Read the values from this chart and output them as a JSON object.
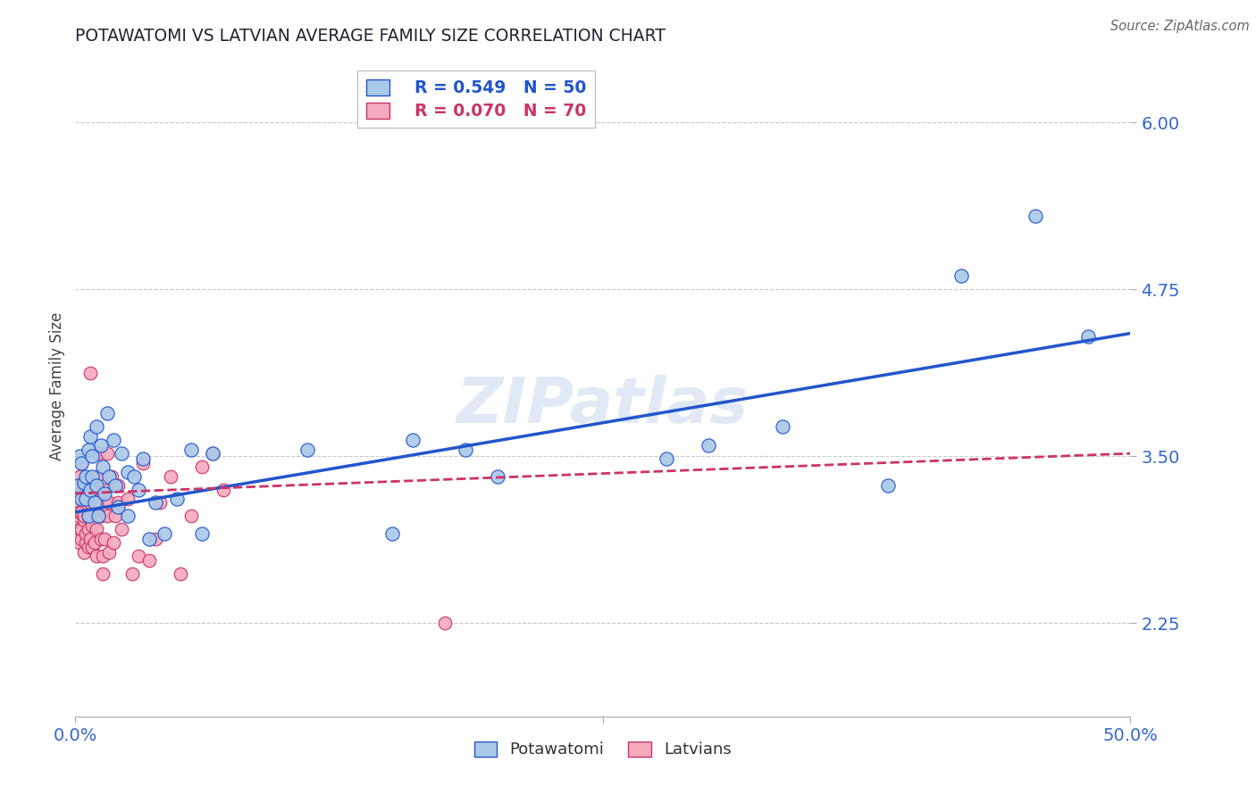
{
  "title": "POTAWATOMI VS LATVIAN AVERAGE FAMILY SIZE CORRELATION CHART",
  "source": "Source: ZipAtlas.com",
  "ylabel": "Average Family Size",
  "yticks": [
    2.25,
    3.5,
    4.75,
    6.0
  ],
  "xmin": 0.0,
  "xmax": 0.5,
  "ymin": 1.55,
  "ymax": 6.5,
  "watermark": "ZIPatlas",
  "blue_R": "0.549",
  "blue_N": "50",
  "pink_R": "0.070",
  "pink_N": "70",
  "blue_color": "#aac8e8",
  "pink_color": "#f5aabe",
  "blue_line_color": "#2255cc",
  "pink_line_color": "#cc3366",
  "grid_color": "#c8c8d0",
  "title_color": "#222233",
  "axis_label_color": "#3366cc",
  "blue_line": [
    [
      0.0,
      3.08
    ],
    [
      0.5,
      4.42
    ]
  ],
  "pink_line": [
    [
      0.0,
      3.22
    ],
    [
      0.5,
      3.52
    ]
  ],
  "blue_scatter": [
    [
      0.001,
      3.28
    ],
    [
      0.002,
      3.5
    ],
    [
      0.003,
      3.18
    ],
    [
      0.003,
      3.45
    ],
    [
      0.004,
      3.3
    ],
    [
      0.005,
      3.35
    ],
    [
      0.005,
      3.18
    ],
    [
      0.006,
      3.05
    ],
    [
      0.006,
      3.55
    ],
    [
      0.007,
      3.65
    ],
    [
      0.007,
      3.25
    ],
    [
      0.008,
      3.5
    ],
    [
      0.008,
      3.35
    ],
    [
      0.009,
      3.15
    ],
    [
      0.01,
      3.72
    ],
    [
      0.01,
      3.28
    ],
    [
      0.011,
      3.05
    ],
    [
      0.012,
      3.58
    ],
    [
      0.013,
      3.42
    ],
    [
      0.014,
      3.22
    ],
    [
      0.015,
      3.82
    ],
    [
      0.016,
      3.35
    ],
    [
      0.018,
      3.62
    ],
    [
      0.019,
      3.28
    ],
    [
      0.02,
      3.12
    ],
    [
      0.022,
      3.52
    ],
    [
      0.025,
      3.05
    ],
    [
      0.025,
      3.38
    ],
    [
      0.028,
      3.35
    ],
    [
      0.03,
      3.25
    ],
    [
      0.032,
      3.48
    ],
    [
      0.035,
      2.88
    ],
    [
      0.038,
      3.15
    ],
    [
      0.042,
      2.92
    ],
    [
      0.048,
      3.18
    ],
    [
      0.055,
      3.55
    ],
    [
      0.06,
      2.92
    ],
    [
      0.065,
      3.52
    ],
    [
      0.11,
      3.55
    ],
    [
      0.16,
      3.62
    ],
    [
      0.185,
      3.55
    ],
    [
      0.2,
      3.35
    ],
    [
      0.3,
      3.58
    ],
    [
      0.335,
      3.72
    ],
    [
      0.385,
      3.28
    ],
    [
      0.42,
      4.85
    ],
    [
      0.455,
      5.3
    ],
    [
      0.48,
      4.4
    ],
    [
      0.28,
      3.48
    ],
    [
      0.15,
      2.92
    ]
  ],
  "pink_scatter": [
    [
      0.001,
      3.18
    ],
    [
      0.001,
      3.28
    ],
    [
      0.001,
      3.05
    ],
    [
      0.001,
      3.12
    ],
    [
      0.001,
      3.22
    ],
    [
      0.002,
      3.22
    ],
    [
      0.002,
      2.95
    ],
    [
      0.002,
      3.35
    ],
    [
      0.002,
      3.08
    ],
    [
      0.002,
      2.85
    ],
    [
      0.003,
      2.88
    ],
    [
      0.003,
      3.08
    ],
    [
      0.003,
      3.45
    ],
    [
      0.003,
      2.95
    ],
    [
      0.004,
      3.02
    ],
    [
      0.004,
      3.25
    ],
    [
      0.004,
      3.05
    ],
    [
      0.004,
      2.78
    ],
    [
      0.005,
      2.85
    ],
    [
      0.005,
      3.15
    ],
    [
      0.005,
      3.28
    ],
    [
      0.005,
      2.92
    ],
    [
      0.006,
      2.95
    ],
    [
      0.006,
      3.05
    ],
    [
      0.006,
      3.18
    ],
    [
      0.006,
      2.82
    ],
    [
      0.007,
      2.88
    ],
    [
      0.007,
      3.15
    ],
    [
      0.007,
      4.12
    ],
    [
      0.007,
      3.05
    ],
    [
      0.008,
      2.98
    ],
    [
      0.008,
      3.25
    ],
    [
      0.008,
      2.82
    ],
    [
      0.009,
      2.85
    ],
    [
      0.009,
      3.08
    ],
    [
      0.01,
      2.95
    ],
    [
      0.01,
      3.35
    ],
    [
      0.01,
      2.75
    ],
    [
      0.011,
      3.15
    ],
    [
      0.011,
      3.52
    ],
    [
      0.012,
      2.88
    ],
    [
      0.012,
      3.05
    ],
    [
      0.013,
      2.75
    ],
    [
      0.013,
      2.62
    ],
    [
      0.014,
      2.88
    ],
    [
      0.014,
      3.25
    ],
    [
      0.015,
      3.05
    ],
    [
      0.015,
      3.52
    ],
    [
      0.016,
      2.78
    ],
    [
      0.016,
      3.15
    ],
    [
      0.017,
      3.35
    ],
    [
      0.018,
      2.85
    ],
    [
      0.019,
      3.05
    ],
    [
      0.02,
      3.15
    ],
    [
      0.02,
      3.28
    ],
    [
      0.022,
      2.95
    ],
    [
      0.025,
      3.18
    ],
    [
      0.027,
      2.62
    ],
    [
      0.03,
      2.75
    ],
    [
      0.032,
      3.45
    ],
    [
      0.035,
      2.72
    ],
    [
      0.038,
      2.88
    ],
    [
      0.04,
      3.15
    ],
    [
      0.045,
      3.35
    ],
    [
      0.05,
      2.62
    ],
    [
      0.055,
      3.05
    ],
    [
      0.06,
      3.42
    ],
    [
      0.065,
      3.52
    ],
    [
      0.07,
      3.25
    ],
    [
      0.175,
      2.25
    ]
  ]
}
